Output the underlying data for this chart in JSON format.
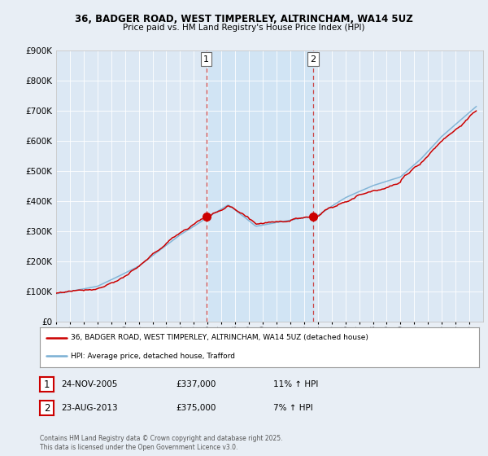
{
  "title1": "36, BADGER ROAD, WEST TIMPERLEY, ALTRINCHAM, WA14 5UZ",
  "title2": "Price paid vs. HM Land Registry's House Price Index (HPI)",
  "bg_color": "#e8eef5",
  "plot_bg_color": "#dce8f4",
  "red_color": "#cc0000",
  "blue_color": "#7ab0d4",
  "span_color": "#d0e4f5",
  "marker1_year": 2005.9,
  "marker1_value": 337000,
  "marker2_year": 2013.65,
  "marker2_value": 375000,
  "legend_line1": "36, BADGER ROAD, WEST TIMPERLEY, ALTRINCHAM, WA14 5UZ (detached house)",
  "legend_line2": "HPI: Average price, detached house, Trafford",
  "table_row1": [
    "1",
    "24-NOV-2005",
    "£337,000",
    "11% ↑ HPI"
  ],
  "table_row2": [
    "2",
    "23-AUG-2013",
    "£375,000",
    "7% ↑ HPI"
  ],
  "footer": "Contains HM Land Registry data © Crown copyright and database right 2025.\nThis data is licensed under the Open Government Licence v3.0.",
  "xmin": 1995,
  "xmax": 2026,
  "ymin": 0,
  "ymax": 900000,
  "hpi_base": 92000,
  "subj_base": 100000
}
